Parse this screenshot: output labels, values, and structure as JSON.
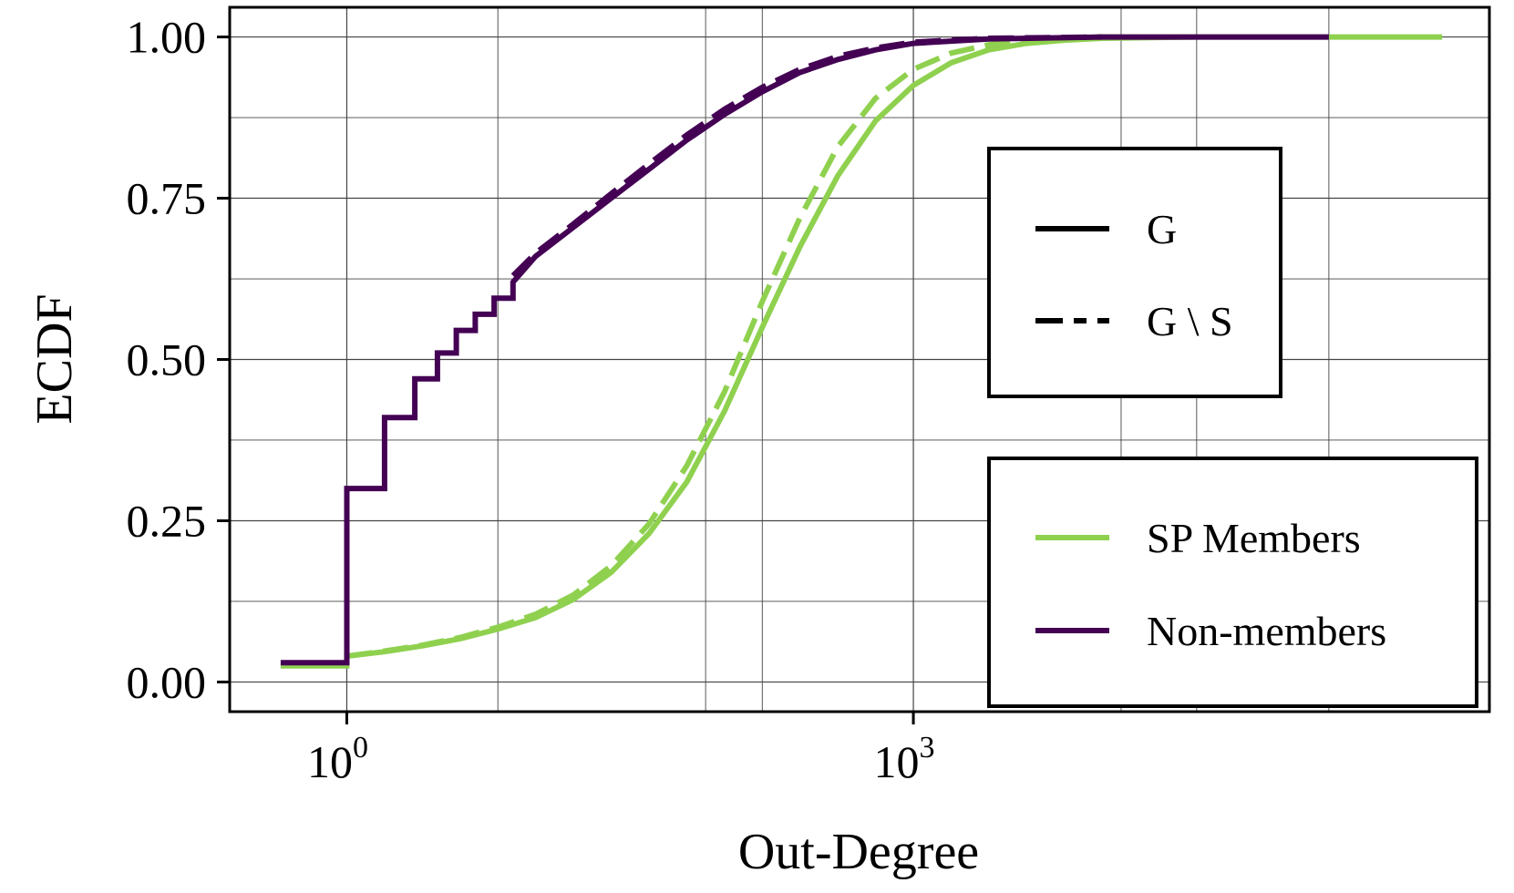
{
  "colors": {
    "sp_members": "#8fd14f",
    "non_members": "#440154",
    "axis": "#000000",
    "grid": "#444444"
  },
  "chart_data": {
    "type": "line",
    "title": "",
    "xlabel": "Out-Degree",
    "ylabel": "ECDF",
    "xscale": "log10",
    "xlim_log10": [
      -0.62,
      6.05
    ],
    "ylim": [
      -0.046,
      1.046
    ],
    "x_ticks": [
      {
        "base": "10",
        "exp": "0",
        "log10": 0
      },
      {
        "base": "10",
        "exp": "3",
        "log10": 3
      }
    ],
    "x_minor_gridlines_log10": [
      0.8,
      1.9,
      2.2,
      4.1,
      4.5,
      5.2
    ],
    "y_ticks": [
      {
        "value": 0.0,
        "label": "0.00"
      },
      {
        "value": 0.25,
        "label": "0.25"
      },
      {
        "value": 0.5,
        "label": "0.50"
      },
      {
        "value": 0.75,
        "label": "0.75"
      },
      {
        "value": 1.0,
        "label": "1.00"
      }
    ],
    "y_minor_gridlines": [
      0.125,
      0.375,
      0.625,
      0.875
    ],
    "grid": true,
    "legend_style": {
      "position": "right, upper box",
      "entries": [
        {
          "label": "G",
          "dash": "solid"
        },
        {
          "label": "G \\ S",
          "dash": "dashed"
        }
      ]
    },
    "legend_group": {
      "position": "lower-right",
      "entries": [
        {
          "label": "SP Members",
          "color_key": "sp_members"
        },
        {
          "label": "Non-members",
          "color_key": "non_members"
        }
      ]
    },
    "series": [
      {
        "name": "SP Members — G",
        "group": "SP Members",
        "style": "G",
        "color_key": "sp_members",
        "x_log10": [
          -0.35,
          0.0,
          0.0,
          0.2,
          0.4,
          0.6,
          0.8,
          1.0,
          1.2,
          1.4,
          1.6,
          1.8,
          2.0,
          2.2,
          2.4,
          2.6,
          2.8,
          3.0,
          3.2,
          3.4,
          3.6,
          3.8,
          4.0,
          4.5,
          5.0,
          5.5,
          5.8
        ],
        "y": [
          0.025,
          0.025,
          0.04,
          0.047,
          0.056,
          0.067,
          0.082,
          0.1,
          0.128,
          0.17,
          0.23,
          0.31,
          0.42,
          0.55,
          0.675,
          0.785,
          0.87,
          0.925,
          0.96,
          0.98,
          0.99,
          0.995,
          0.998,
          1.0,
          1.0,
          1.0,
          1.0
        ]
      },
      {
        "name": "SP Members — G \\ S",
        "group": "SP Members",
        "style": "G \\ S",
        "color_key": "sp_members",
        "x_log10": [
          0.0,
          0.2,
          0.4,
          0.6,
          0.8,
          1.0,
          1.2,
          1.4,
          1.6,
          1.8,
          2.0,
          2.2,
          2.4,
          2.6,
          2.8,
          3.0,
          3.2,
          3.4,
          3.6,
          3.8,
          4.0,
          4.2
        ],
        "y": [
          0.04,
          0.048,
          0.057,
          0.069,
          0.085,
          0.105,
          0.135,
          0.18,
          0.245,
          0.335,
          0.45,
          0.59,
          0.72,
          0.83,
          0.905,
          0.95,
          0.975,
          0.988,
          0.995,
          0.998,
          1.0,
          1.0
        ]
      },
      {
        "name": "Non-members — G",
        "group": "Non-members",
        "style": "G",
        "color_key": "non_members",
        "x_log10": [
          -0.35,
          0.0,
          0.0,
          0.2,
          0.2,
          0.36,
          0.36,
          0.48,
          0.48,
          0.58,
          0.58,
          0.68,
          0.68,
          0.78,
          0.78,
          0.88,
          0.88,
          1.0,
          1.2,
          1.4,
          1.6,
          1.8,
          2.0,
          2.2,
          2.4,
          2.6,
          2.8,
          3.0,
          3.4,
          4.0,
          4.5,
          5.0,
          5.2
        ],
        "y": [
          0.03,
          0.03,
          0.3,
          0.3,
          0.41,
          0.41,
          0.47,
          0.47,
          0.51,
          0.51,
          0.545,
          0.545,
          0.57,
          0.57,
          0.595,
          0.595,
          0.62,
          0.66,
          0.705,
          0.75,
          0.795,
          0.84,
          0.88,
          0.915,
          0.945,
          0.965,
          0.98,
          0.99,
          0.997,
          1.0,
          1.0,
          1.0,
          1.0
        ]
      },
      {
        "name": "Non-members — G \\ S",
        "group": "Non-members",
        "style": "G \\ S",
        "color_key": "non_members",
        "x_log10": [
          0.88,
          1.0,
          1.2,
          1.4,
          1.6,
          1.8,
          2.0,
          2.2,
          2.4,
          2.6,
          2.8,
          3.0,
          3.4,
          4.0
        ],
        "y": [
          0.63,
          0.665,
          0.71,
          0.757,
          0.803,
          0.848,
          0.888,
          0.922,
          0.95,
          0.97,
          0.983,
          0.992,
          0.998,
          1.0
        ]
      }
    ]
  }
}
